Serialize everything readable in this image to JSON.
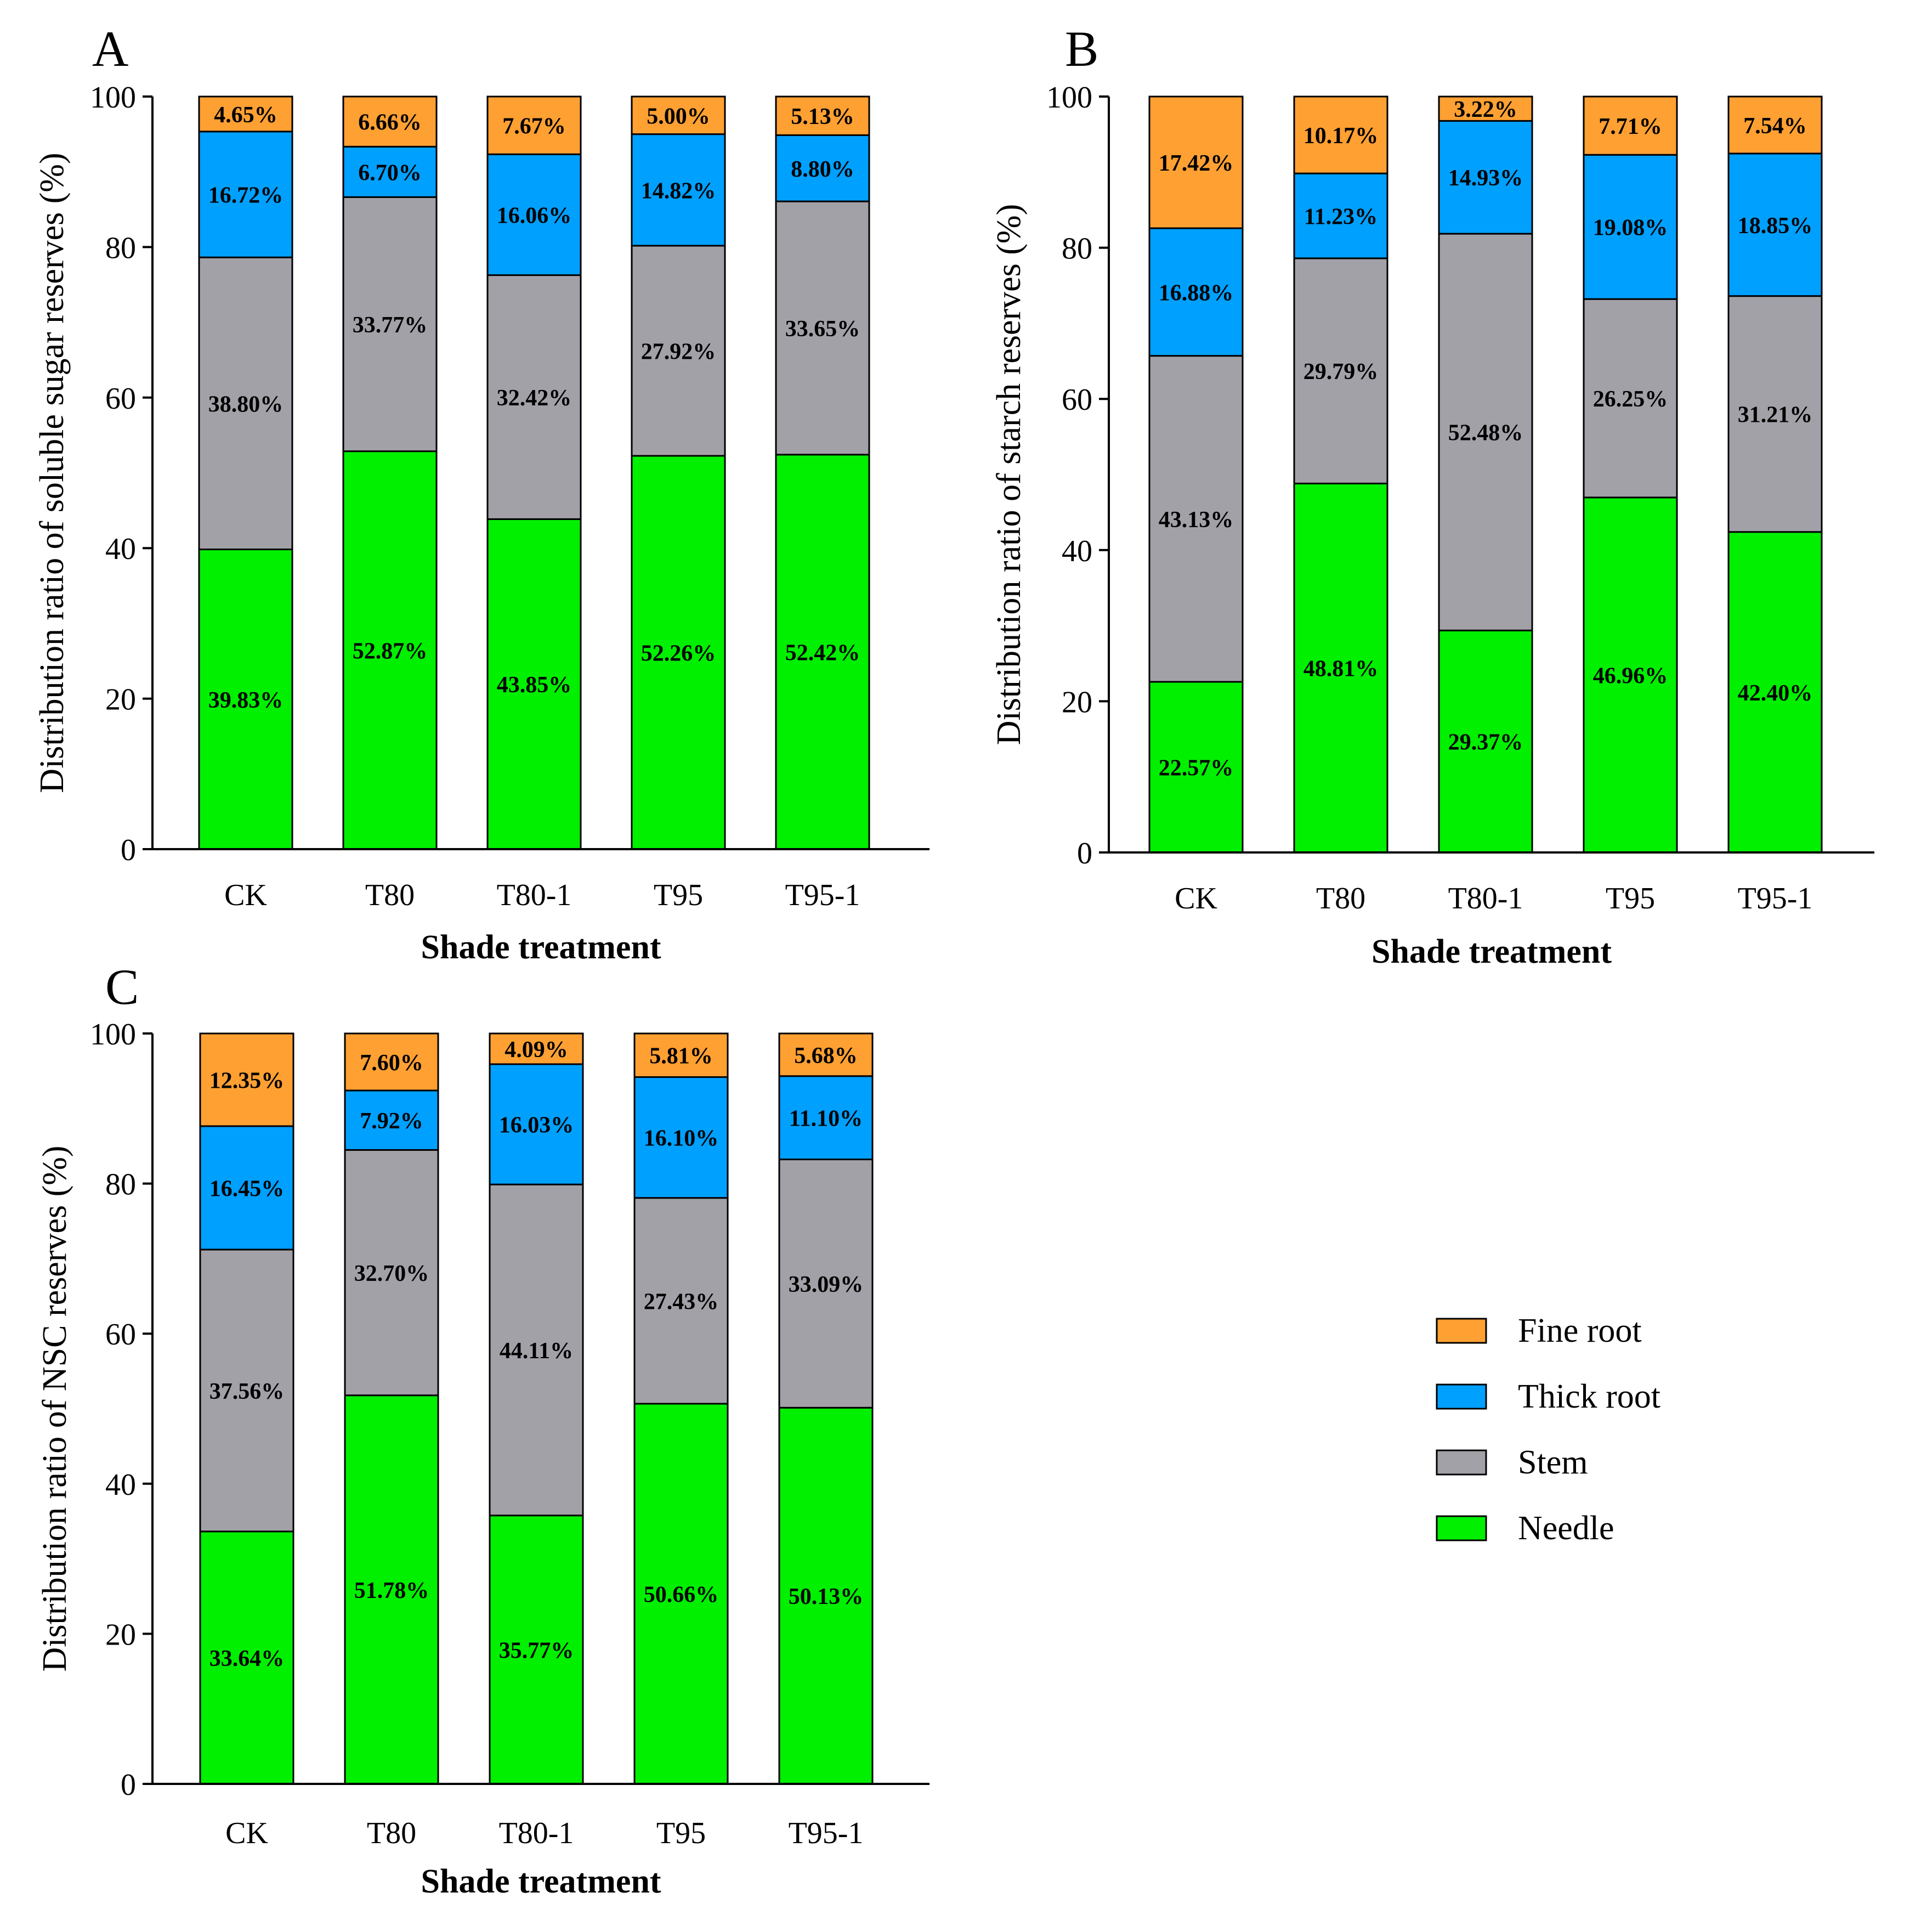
{
  "colors": {
    "Fine root": "#ffa032",
    "Thick root": "#00a0ff",
    "Stem": "#a3a1a8",
    "Needle": "#00f000"
  },
  "legend": {
    "entries": [
      "Fine root",
      "Thick root",
      "Stem",
      "Needle"
    ]
  },
  "chart_data": [
    {
      "panel": "A",
      "type": "bar",
      "stacked": true,
      "title": "",
      "xlabel": "Shade treatment",
      "ylabel": "Distribution ratio of soluble sugar reserves (%)",
      "ylim": [
        0,
        100
      ],
      "yticks": [
        0,
        20,
        40,
        60,
        80,
        100
      ],
      "categories": [
        "CK",
        "T80",
        "T80-1",
        "T95",
        "T95-1"
      ],
      "series": [
        {
          "name": "Needle",
          "values": [
            39.83,
            52.87,
            43.85,
            52.26,
            52.42
          ],
          "labels": [
            "39.83%",
            "52.87%",
            "43.85%",
            "52.26%",
            "52.42%"
          ]
        },
        {
          "name": "Stem",
          "values": [
            38.8,
            33.77,
            32.42,
            27.92,
            33.65
          ],
          "labels": [
            "38.80%",
            "33.77%",
            "32.42%",
            "27.92%",
            "33.65%"
          ]
        },
        {
          "name": "Thick root",
          "values": [
            16.72,
            6.7,
            16.06,
            14.82,
            8.8
          ],
          "labels": [
            "16.72%",
            "6.70%",
            "16.06%",
            "14.82%",
            "8.80%"
          ]
        },
        {
          "name": "Fine root",
          "values": [
            4.65,
            6.66,
            7.67,
            5.0,
            5.13
          ],
          "labels": [
            "4.65%",
            "6.66%",
            "7.67%",
            "5.00%",
            "5.13%"
          ]
        }
      ]
    },
    {
      "panel": "B",
      "type": "bar",
      "stacked": true,
      "title": "",
      "xlabel": "Shade treatment",
      "ylabel": "Distribution ratio of starch reserves (%)",
      "ylim": [
        0,
        100
      ],
      "yticks": [
        0,
        20,
        40,
        60,
        80,
        100
      ],
      "categories": [
        "CK",
        "T80",
        "T80-1",
        "T95",
        "T95-1"
      ],
      "series": [
        {
          "name": "Needle",
          "values": [
            22.57,
            48.81,
            29.37,
            46.96,
            42.4
          ],
          "labels": [
            "22.57%",
            "48.81%",
            "29.37%",
            "46.96%",
            "42.40%"
          ]
        },
        {
          "name": "Stem",
          "values": [
            43.13,
            29.79,
            52.48,
            26.25,
            31.21
          ],
          "labels": [
            "43.13%",
            "29.79%",
            "52.48%",
            "26.25%",
            "31.21%"
          ]
        },
        {
          "name": "Thick root",
          "values": [
            16.88,
            11.23,
            14.93,
            19.08,
            18.85
          ],
          "labels": [
            "16.88%",
            "11.23%",
            "14.93%",
            "19.08%",
            "18.85%"
          ]
        },
        {
          "name": "Fine root",
          "values": [
            17.42,
            10.17,
            3.22,
            7.71,
            7.54
          ],
          "labels": [
            "17.42%",
            "10.17%",
            "3.22%",
            "7.71%",
            "7.54%"
          ]
        }
      ]
    },
    {
      "panel": "C",
      "type": "bar",
      "stacked": true,
      "title": "",
      "xlabel": "Shade treatment",
      "ylabel": "Distribution ratio of NSC reserves (%)",
      "ylim": [
        0,
        100
      ],
      "yticks": [
        0,
        20,
        40,
        60,
        80,
        100
      ],
      "categories": [
        "CK",
        "T80",
        "T80-1",
        "T95",
        "T95-1"
      ],
      "series": [
        {
          "name": "Needle",
          "values": [
            33.64,
            51.78,
            35.77,
            50.66,
            50.13
          ],
          "labels": [
            "33.64%",
            "51.78%",
            "35.77%",
            "50.66%",
            "50.13%"
          ]
        },
        {
          "name": "Stem",
          "values": [
            37.56,
            32.7,
            44.11,
            27.43,
            33.09
          ],
          "labels": [
            "37.56%",
            "32.70%",
            "44.11%",
            "27.43%",
            "33.09%"
          ]
        },
        {
          "name": "Thick root",
          "values": [
            16.45,
            7.92,
            16.03,
            16.1,
            11.1
          ],
          "labels": [
            "16.45%",
            "7.92%",
            "16.03%",
            "16.10%",
            "11.10%"
          ]
        },
        {
          "name": "Fine root",
          "values": [
            12.35,
            7.6,
            4.09,
            5.81,
            5.68
          ],
          "labels": [
            "12.35%",
            "7.60%",
            "4.09%",
            "5.81%",
            "5.68%"
          ]
        }
      ]
    }
  ]
}
